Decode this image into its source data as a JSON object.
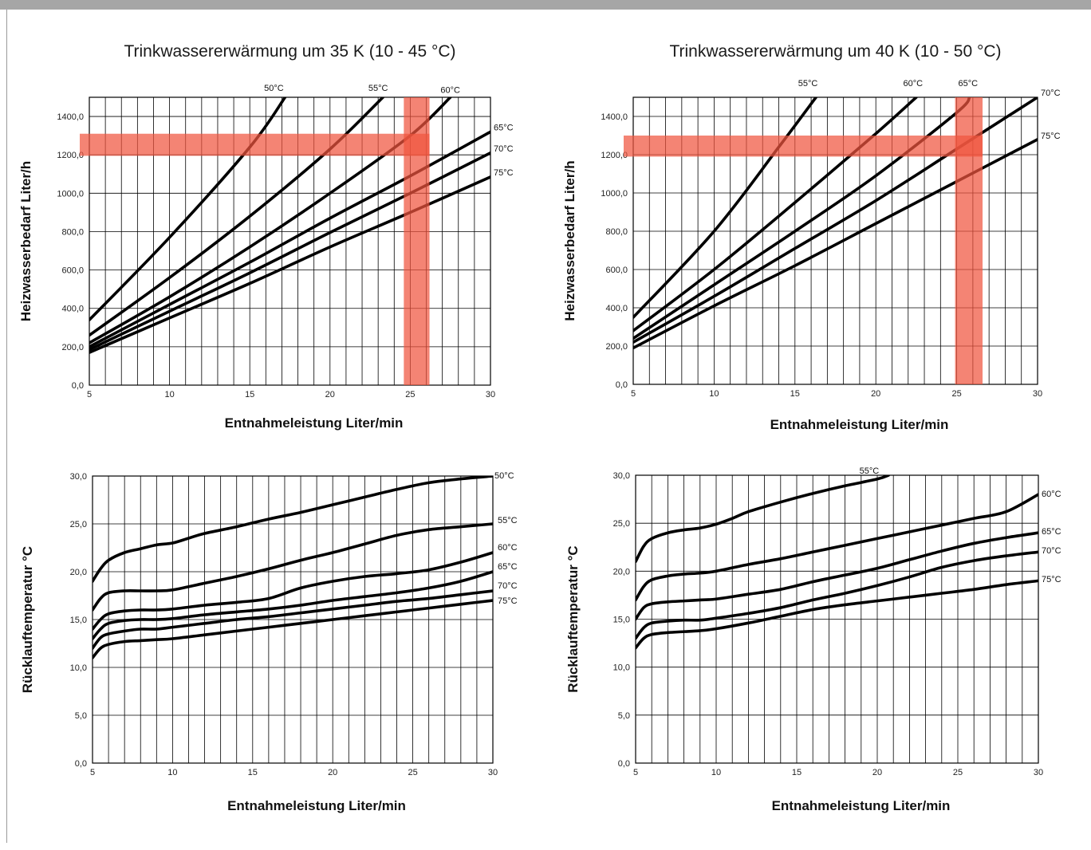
{
  "colors": {
    "highlight": "#f0553f",
    "topbar": "#a6a6a6"
  },
  "chart_data": [
    {
      "type": "line",
      "title": "Trinkwassererwärmung um 35 K (10 - 45 °C)",
      "xlabel": "Entnahmeleistung Liter/min",
      "ylabel": "Heizwasserbedarf Liter/h",
      "xlim": [
        5,
        30
      ],
      "ylim": [
        0,
        1500
      ],
      "xticks": [
        "5",
        "10",
        "15",
        "20",
        "25",
        "30"
      ],
      "yticks": [
        "0,0",
        "200,0",
        "400,0",
        "600,0",
        "800,0",
        "1000,0",
        "1200,0",
        "1400,0"
      ],
      "grid": true,
      "highlight": {
        "x": [
          24.6,
          26.2
        ],
        "y": [
          1195,
          1310
        ]
      },
      "series": [
        {
          "name": "50°C",
          "x": [
            5,
            10,
            15,
            17.2
          ],
          "y": [
            340,
            770,
            1240,
            1500
          ]
        },
        {
          "name": "55°C",
          "x": [
            5,
            10,
            15,
            20,
            23.3
          ],
          "y": [
            260,
            560,
            880,
            1230,
            1500
          ]
        },
        {
          "name": "60°C",
          "x": [
            5,
            10,
            15,
            20,
            25,
            27.5
          ],
          "y": [
            220,
            460,
            720,
            1000,
            1300,
            1500
          ]
        },
        {
          "name": "65°C",
          "x": [
            5,
            10,
            15,
            20,
            25,
            30
          ],
          "y": [
            200,
            420,
            640,
            870,
            1090,
            1320
          ]
        },
        {
          "name": "70°C",
          "x": [
            5,
            10,
            15,
            20,
            25,
            30
          ],
          "y": [
            185,
            385,
            585,
            795,
            1000,
            1210
          ]
        },
        {
          "name": "75°C",
          "x": [
            5,
            10,
            15,
            20,
            25,
            30
          ],
          "y": [
            170,
            350,
            530,
            720,
            900,
            1085
          ]
        }
      ]
    },
    {
      "type": "line",
      "title": "Trinkwassererwärmung um 40 K (10 - 50 °C)",
      "xlabel": "Entnahmeleistung Liter/min",
      "ylabel": "Heizwasserbedarf Liter/h",
      "xlim": [
        5,
        30
      ],
      "ylim": [
        0,
        1500
      ],
      "xticks": [
        "5",
        "10",
        "15",
        "20",
        "25",
        "30"
      ],
      "yticks": [
        "0,0",
        "200,0",
        "400,0",
        "600,0",
        "800,0",
        "1000,0",
        "1200,0",
        "1400,0"
      ],
      "grid": true,
      "highlight": {
        "x": [
          24.9,
          26.6
        ],
        "y": [
          1190,
          1300
        ]
      },
      "series": [
        {
          "name": "55°C",
          "x": [
            5,
            10,
            14,
            16.3
          ],
          "y": [
            350,
            800,
            1240,
            1500
          ]
        },
        {
          "name": "60°C",
          "x": [
            5,
            10,
            15,
            20,
            22.5
          ],
          "y": [
            280,
            600,
            950,
            1310,
            1500
          ]
        },
        {
          "name": "65°C",
          "x": [
            5,
            10,
            15,
            20,
            25,
            25.8
          ],
          "y": [
            240,
            520,
            800,
            1090,
            1420,
            1500
          ]
        },
        {
          "name": "70°C",
          "x": [
            5,
            10,
            15,
            20,
            25,
            30
          ],
          "y": [
            220,
            460,
            710,
            960,
            1230,
            1500
          ]
        },
        {
          "name": "75°C",
          "x": [
            5,
            10,
            15,
            20,
            25,
            30
          ],
          "y": [
            190,
            410,
            620,
            840,
            1060,
            1280
          ]
        }
      ]
    },
    {
      "type": "line",
      "title": "",
      "xlabel": "Entnahmeleistung Liter/min",
      "ylabel": "Rücklauftemperatur °C",
      "xlim": [
        5,
        30
      ],
      "ylim": [
        0,
        30
      ],
      "xticks": [
        "5",
        "10",
        "15",
        "20",
        "25",
        "30"
      ],
      "yticks": [
        "0,0",
        "5,0",
        "10,0",
        "15,0",
        "20,0",
        "25,0",
        "30,0"
      ],
      "grid": true,
      "series": [
        {
          "name": "50°C",
          "x": [
            5,
            5.5,
            6,
            7,
            8,
            9,
            10,
            11,
            12,
            14,
            16,
            18,
            20,
            22,
            24,
            26,
            28,
            30
          ],
          "y": [
            19,
            20.3,
            21.2,
            22,
            22.4,
            22.8,
            23,
            23.5,
            24,
            24.7,
            25.5,
            26.2,
            27,
            27.8,
            28.6,
            29.3,
            29.7,
            30
          ]
        },
        {
          "name": "55°C",
          "x": [
            5,
            5.5,
            6,
            7,
            8,
            9,
            10,
            12,
            14,
            16,
            18,
            20,
            22,
            24,
            26,
            28,
            30
          ],
          "y": [
            16,
            17.2,
            17.8,
            18,
            18,
            18,
            18.1,
            18.8,
            19.5,
            20.3,
            21.2,
            22,
            22.9,
            23.8,
            24.4,
            24.7,
            25
          ]
        },
        {
          "name": "60°C",
          "x": [
            5,
            5.5,
            6,
            7,
            8,
            9,
            10,
            12,
            14,
            16,
            18,
            20,
            22,
            24,
            26,
            28,
            30
          ],
          "y": [
            14,
            15,
            15.6,
            15.9,
            16,
            16,
            16.1,
            16.5,
            16.8,
            17.2,
            18.3,
            19,
            19.5,
            19.8,
            20.2,
            21,
            22
          ]
        },
        {
          "name": "65°C",
          "x": [
            5,
            5.5,
            6,
            7,
            8,
            9,
            10,
            12,
            14,
            16,
            18,
            20,
            22,
            24,
            26,
            28,
            30
          ],
          "y": [
            13,
            14,
            14.6,
            14.9,
            15,
            15,
            15.1,
            15.5,
            15.8,
            16.1,
            16.5,
            17,
            17.4,
            17.8,
            18.3,
            19,
            20
          ]
        },
        {
          "name": "70°C",
          "x": [
            5,
            5.5,
            6,
            7,
            8,
            9,
            10,
            12,
            14,
            16,
            18,
            20,
            22,
            24,
            26,
            28,
            30
          ],
          "y": [
            12,
            13.1,
            13.5,
            13.8,
            14,
            14,
            14.2,
            14.6,
            15,
            15.3,
            15.7,
            16.1,
            16.5,
            16.9,
            17.2,
            17.6,
            18
          ]
        },
        {
          "name": "75°C",
          "x": [
            5,
            5.5,
            6,
            7,
            8,
            9,
            10,
            12,
            14,
            16,
            18,
            20,
            22,
            24,
            26,
            28,
            30
          ],
          "y": [
            11,
            12,
            12.4,
            12.7,
            12.8,
            12.9,
            13,
            13.4,
            13.8,
            14.2,
            14.6,
            15,
            15.4,
            15.8,
            16.2,
            16.6,
            17
          ]
        }
      ]
    },
    {
      "type": "line",
      "title": "",
      "xlabel": "Entnahmeleistung Liter/min",
      "ylabel": "Rücklauftemperatur °C",
      "xlim": [
        5,
        30
      ],
      "ylim": [
        0,
        30
      ],
      "xticks": [
        "5",
        "10",
        "15",
        "20",
        "25",
        "30"
      ],
      "yticks": [
        "0,0",
        "5,0",
        "10,0",
        "15,0",
        "20,0",
        "25,0",
        "30,0"
      ],
      "grid": true,
      "series": [
        {
          "name": "55°C",
          "x": [
            5,
            5.5,
            6,
            7,
            8,
            9,
            10,
            11,
            12,
            14,
            16,
            18,
            20,
            20.7
          ],
          "y": [
            21,
            22.6,
            23.4,
            24,
            24.3,
            24.5,
            24.9,
            25.5,
            26.2,
            27.2,
            28.1,
            28.9,
            29.6,
            30
          ]
        },
        {
          "name": "60°C",
          "x": [
            5,
            5.5,
            6,
            7,
            8,
            9,
            10,
            12,
            14,
            16,
            18,
            20,
            22,
            24,
            26,
            28,
            30
          ],
          "y": [
            17,
            18.4,
            19.1,
            19.5,
            19.7,
            19.8,
            20,
            20.7,
            21.3,
            22,
            22.7,
            23.4,
            24.1,
            24.8,
            25.5,
            26.2,
            28
          ]
        },
        {
          "name": "65°C",
          "x": [
            5,
            5.5,
            6,
            7,
            8,
            9,
            10,
            12,
            14,
            16,
            18,
            20,
            22,
            24,
            26,
            28,
            30
          ],
          "y": [
            15,
            16.2,
            16.6,
            16.8,
            16.9,
            17,
            17.1,
            17.6,
            18.1,
            18.9,
            19.6,
            20.3,
            21.2,
            22.1,
            22.9,
            23.5,
            24
          ]
        },
        {
          "name": "70°C",
          "x": [
            5,
            5.5,
            6,
            7,
            8,
            9,
            10,
            12,
            14,
            16,
            18,
            20,
            22,
            24,
            26,
            28,
            30
          ],
          "y": [
            13,
            14.1,
            14.6,
            14.8,
            14.9,
            14.9,
            15.1,
            15.6,
            16.2,
            17,
            17.7,
            18.5,
            19.4,
            20.4,
            21.1,
            21.6,
            22
          ]
        },
        {
          "name": "75°C",
          "x": [
            5,
            5.5,
            6,
            7,
            8,
            9,
            10,
            12,
            14,
            16,
            18,
            20,
            22,
            24,
            26,
            28,
            30
          ],
          "y": [
            12,
            13,
            13.4,
            13.6,
            13.7,
            13.8,
            14,
            14.6,
            15.3,
            16,
            16.5,
            16.9,
            17.3,
            17.7,
            18.1,
            18.6,
            19
          ]
        }
      ]
    }
  ]
}
